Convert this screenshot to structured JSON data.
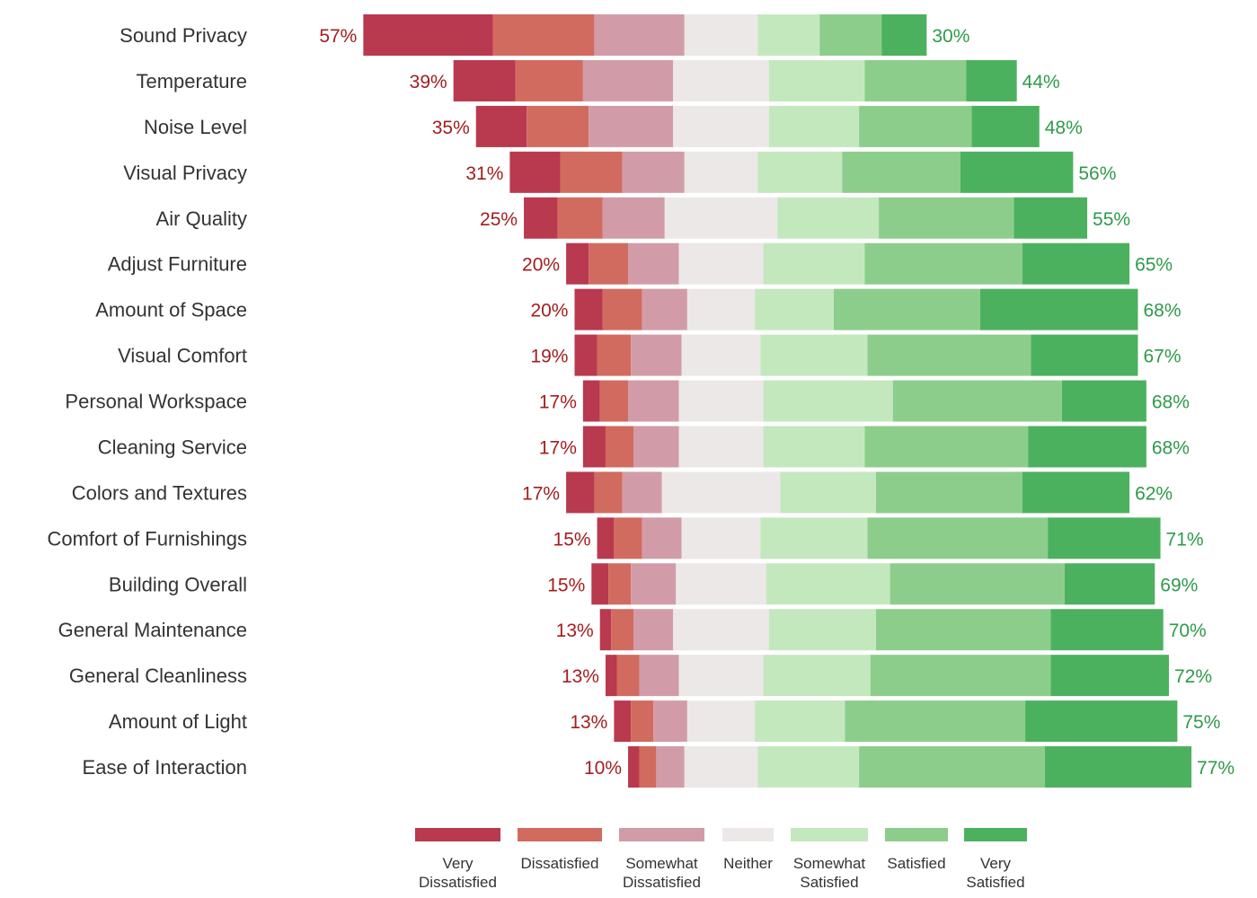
{
  "chart_data": {
    "type": "bar",
    "subtype": "diverging-stacked-horizontal",
    "title": "",
    "xlabel": "",
    "ylabel": "",
    "unit": "%",
    "grid": false,
    "legend_position": "bottom",
    "series": [
      {
        "name": "Very Dissatisfied",
        "color": "#B9394E",
        "side": "negative"
      },
      {
        "name": "Dissatisfied",
        "color": "#D16B5F",
        "side": "negative"
      },
      {
        "name": "Somewhat Dissatisfied",
        "color": "#D19CA8",
        "side": "negative"
      },
      {
        "name": "Neither",
        "color": "#ECE8E8",
        "side": "center"
      },
      {
        "name": "Somewhat Satisfied",
        "color": "#C4E8BE",
        "side": "positive"
      },
      {
        "name": "Satisfied",
        "color": "#8DCD8C",
        "side": "positive"
      },
      {
        "name": "Very Satisfied",
        "color": "#4CB15F",
        "side": "positive"
      }
    ],
    "legend_labels": [
      [
        "Very",
        "Dissatisfied"
      ],
      [
        "Dissatisfied"
      ],
      [
        "Somewhat",
        "Dissatisfied"
      ],
      [
        "Neither"
      ],
      [
        "Somewhat",
        "Satisfied"
      ],
      [
        "Satisfied"
      ],
      [
        "Very",
        "Satisfied"
      ]
    ],
    "categories": [
      "Sound Privacy",
      "Temperature",
      "Noise Level",
      "Visual Privacy",
      "Air Quality",
      "Adjust Furniture",
      "Amount of Space",
      "Visual Comfort",
      "Personal Workspace",
      "Cleaning Service",
      "Colors and Textures",
      "Comfort of Furnishings",
      "Building Overall",
      "General Maintenance",
      "General Cleanliness",
      "Amount of Light",
      "Ease of Interaction"
    ],
    "values": [
      [
        23,
        18,
        16,
        13,
        11,
        11,
        8
      ],
      [
        11,
        12,
        16,
        17,
        17,
        18,
        9
      ],
      [
        9,
        11,
        15,
        17,
        16,
        20,
        12
      ],
      [
        9,
        11,
        11,
        13,
        15,
        21,
        20
      ],
      [
        6,
        8,
        11,
        20,
        18,
        24,
        13
      ],
      [
        4,
        7,
        9,
        15,
        18,
        28,
        19
      ],
      [
        5,
        7,
        8,
        12,
        14,
        26,
        28
      ],
      [
        4,
        6,
        9,
        14,
        19,
        29,
        19
      ],
      [
        3,
        5,
        9,
        15,
        23,
        30,
        15
      ],
      [
        4,
        5,
        8,
        15,
        18,
        29,
        21
      ],
      [
        5,
        5,
        7,
        21,
        17,
        26,
        19
      ],
      [
        3,
        5,
        7,
        14,
        19,
        32,
        20
      ],
      [
        3,
        4,
        8,
        16,
        22,
        31,
        16
      ],
      [
        2,
        4,
        7,
        17,
        19,
        31,
        20
      ],
      [
        2,
        4,
        7,
        15,
        19,
        32,
        21
      ],
      [
        3,
        4,
        6,
        12,
        16,
        32,
        27
      ],
      [
        2,
        3,
        5,
        13,
        18,
        33,
        26
      ]
    ],
    "negative_totals": [
      "57%",
      "39%",
      "35%",
      "31%",
      "25%",
      "20%",
      "20%",
      "19%",
      "17%",
      "17%",
      "17%",
      "15%",
      "15%",
      "13%",
      "13%",
      "13%",
      "10%"
    ],
    "positive_totals": [
      "30%",
      "44%",
      "48%",
      "56%",
      "55%",
      "65%",
      "68%",
      "67%",
      "68%",
      "68%",
      "62%",
      "71%",
      "69%",
      "70%",
      "72%",
      "75%",
      "77%"
    ],
    "negative_label_color": "#A31D1D",
    "positive_label_color": "#2E9A4A"
  }
}
